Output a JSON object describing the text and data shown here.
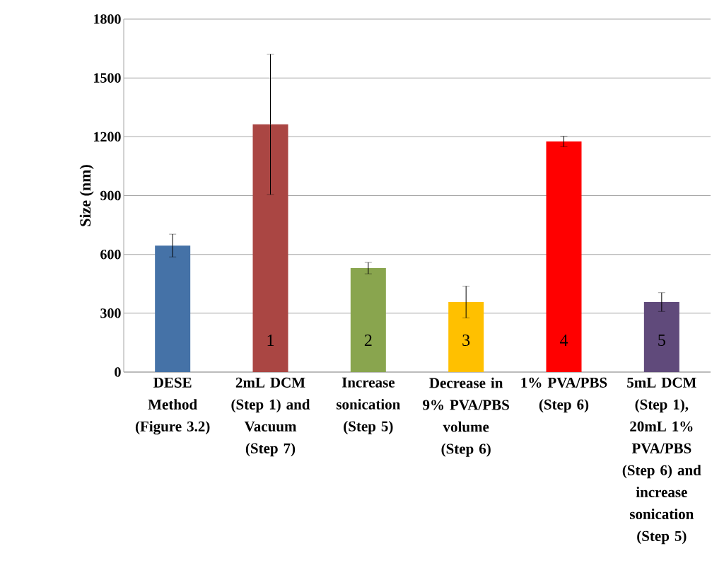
{
  "chart_data": {
    "type": "bar",
    "ylabel": "Size (nm)",
    "categories": [
      "DESE Method (Figure 3.2)",
      "2mL DCM (Step 1) and Vacuum (Step 7)",
      "Increase sonication (Step 5)",
      "Decrease in 9% PVA/PBS volume (Step 6)",
      "1% PVA/PBS (Step 6)",
      "5mL DCM (Step 1), 20mL 1% PVA/PBS (Step 6) and increase sonication (Step 5)"
    ],
    "values": [
      645,
      1263,
      530,
      357,
      1176,
      357
    ],
    "errors": [
      58,
      358,
      29,
      81,
      27,
      48
    ],
    "colors": [
      "#4572a7",
      "#aa4643",
      "#89a54e",
      "#ffc000",
      "#ff0000",
      "#604a7b"
    ],
    "ylim": [
      0,
      1800
    ],
    "yticks": [
      0,
      300,
      600,
      900,
      1200,
      1500,
      1800
    ],
    "grid": "y",
    "annotations": [
      "1",
      "2",
      "3",
      "4",
      "5"
    ]
  }
}
